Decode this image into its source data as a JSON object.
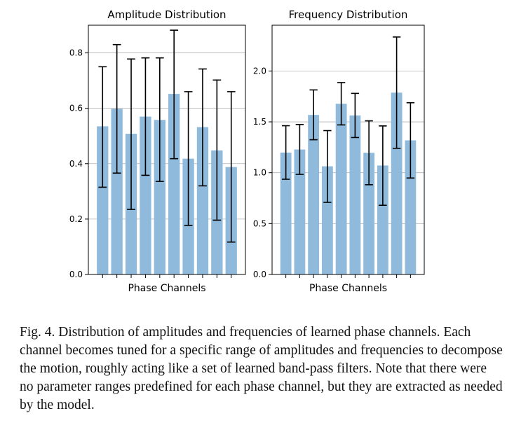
{
  "chart_data": [
    {
      "type": "bar",
      "title": "Amplitude Distribution",
      "xlabel": "Phase Channels",
      "ylabel": "",
      "ylim": [
        0,
        0.9
      ],
      "yticks": [
        "0.0",
        "0.2",
        "0.4",
        "0.6",
        "0.8"
      ],
      "ytick_values": [
        0.0,
        0.2,
        0.4,
        0.6,
        0.8
      ],
      "grid": "horizontal",
      "bar_color": "#8fbadb",
      "values": [
        0.535,
        0.598,
        0.508,
        0.57,
        0.558,
        0.652,
        0.418,
        0.532,
        0.448,
        0.388
      ],
      "error_low": [
        0.315,
        0.366,
        0.235,
        0.358,
        0.336,
        0.418,
        0.177,
        0.32,
        0.196,
        0.117
      ],
      "error_high": [
        0.75,
        0.83,
        0.778,
        0.782,
        0.782,
        0.882,
        0.66,
        0.742,
        0.702,
        0.66
      ]
    },
    {
      "type": "bar",
      "title": "Frequency Distribution",
      "xlabel": "Phase Channels",
      "ylabel": "",
      "ylim": [
        0,
        2.45
      ],
      "yticks": [
        "0.0",
        "0.5",
        "1.0",
        "1.5",
        "2.0"
      ],
      "ytick_values": [
        0.0,
        0.5,
        1.0,
        1.5,
        2.0
      ],
      "grid": "horizontal",
      "bar_color": "#8fbadb",
      "values": [
        1.198,
        1.228,
        1.568,
        1.063,
        1.678,
        1.563,
        1.196,
        1.071,
        1.787,
        1.318
      ],
      "error_low": [
        0.936,
        0.984,
        1.324,
        0.709,
        1.47,
        1.346,
        0.882,
        0.68,
        1.24,
        0.948
      ],
      "error_high": [
        1.462,
        1.474,
        1.814,
        1.414,
        1.886,
        1.78,
        1.51,
        1.46,
        2.334,
        1.688
      ]
    }
  ],
  "caption": "Fig. 4.   Distribution of amplitudes and frequencies of learned phase channels. Each channel becomes tuned for a specific range of amplitudes and frequencies to decompose the motion, roughly acting like a set of learned band-pass filters. Note that there were no parameter ranges predefined for each phase channel, but they are extracted as needed by the model."
}
